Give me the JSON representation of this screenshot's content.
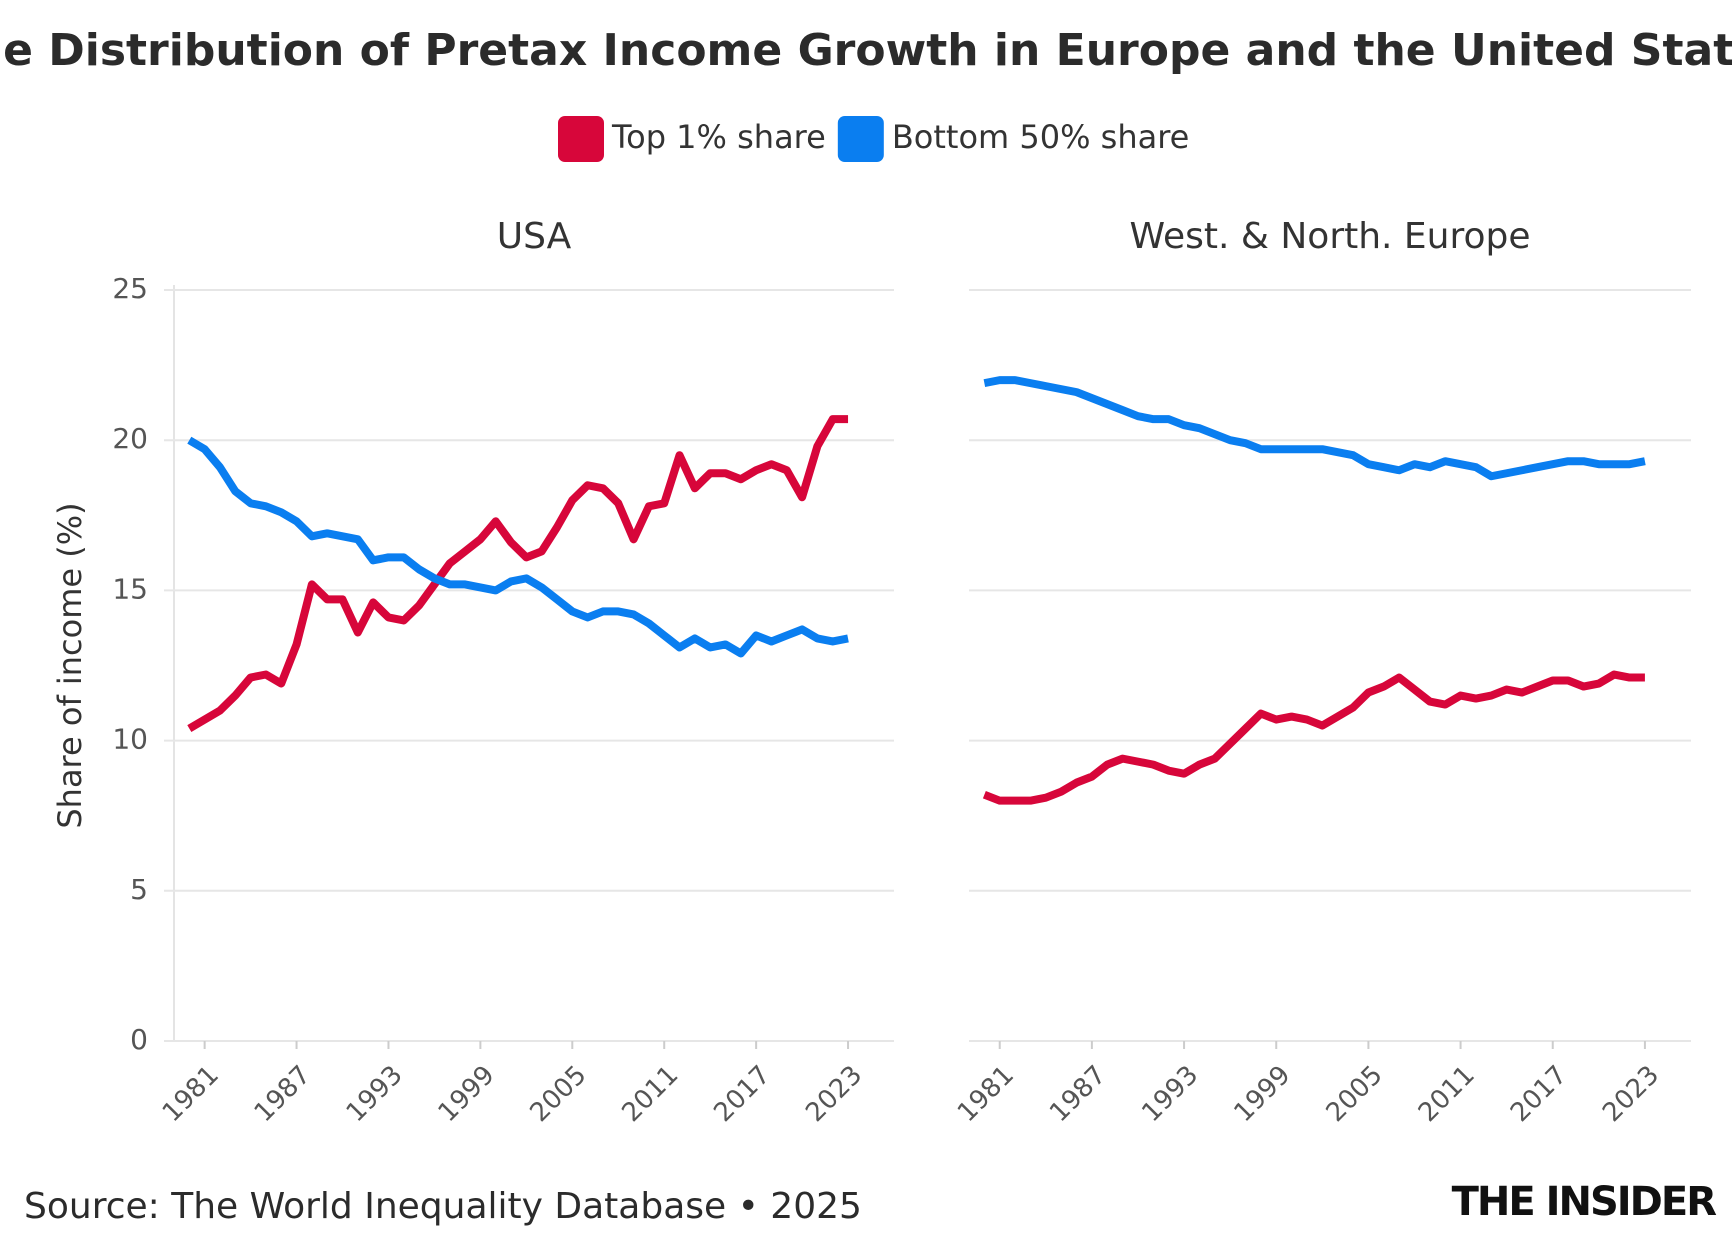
{
  "title": "The Distribution of Pretax Income Growth in Europe and the United States",
  "source": "Source: The World Inequality Database • 2025",
  "brand": "THE INSIDER",
  "chart_data": [
    {
      "type": "line",
      "title": "USA",
      "y_label": "Share of income (%)",
      "show_ytick_labels": true,
      "grid": true,
      "x": [
        1980,
        1981,
        1982,
        1983,
        1984,
        1985,
        1986,
        1987,
        1988,
        1989,
        1990,
        1991,
        1992,
        1993,
        1994,
        1995,
        1996,
        1997,
        1998,
        1999,
        2000,
        2001,
        2002,
        2003,
        2004,
        2005,
        2006,
        2007,
        2008,
        2009,
        2010,
        2011,
        2012,
        2013,
        2014,
        2015,
        2016,
        2017,
        2018,
        2019,
        2020,
        2021,
        2022,
        2023
      ],
      "xlim": [
        1979,
        2026
      ],
      "xticks": [
        1981,
        1987,
        1993,
        1999,
        2005,
        2011,
        2017,
        2023
      ],
      "ylim": [
        0,
        25
      ],
      "yticks": [
        0,
        5,
        10,
        15,
        20,
        25
      ],
      "series": [
        {
          "name": "Top 1% share",
          "color": "#d7063a",
          "values": [
            10.4,
            10.7,
            11.0,
            11.5,
            12.1,
            12.2,
            11.9,
            13.2,
            15.2,
            14.7,
            14.7,
            13.6,
            14.6,
            14.1,
            14.0,
            14.5,
            15.2,
            15.9,
            16.3,
            16.7,
            17.3,
            16.6,
            16.1,
            16.3,
            17.1,
            18.0,
            18.5,
            18.4,
            17.9,
            16.7,
            17.8,
            17.9,
            19.5,
            18.4,
            18.9,
            18.9,
            18.7,
            19.0,
            19.2,
            19.0,
            18.1,
            19.8,
            20.7,
            20.7
          ]
        },
        {
          "name": "Bottom 50% share",
          "color": "#0a7ef0",
          "values": [
            20.0,
            19.7,
            19.1,
            18.3,
            17.9,
            17.8,
            17.6,
            17.3,
            16.8,
            16.9,
            16.8,
            16.7,
            16.0,
            16.1,
            16.1,
            15.7,
            15.4,
            15.2,
            15.2,
            15.1,
            15.0,
            15.3,
            15.4,
            15.1,
            14.7,
            14.3,
            14.1,
            14.3,
            14.3,
            14.2,
            13.9,
            13.5,
            13.1,
            13.4,
            13.1,
            13.2,
            12.9,
            13.5,
            13.3,
            13.5,
            13.7,
            13.4,
            13.3,
            13.4
          ]
        }
      ]
    },
    {
      "type": "line",
      "title": "West. & North. Europe",
      "show_ytick_labels": false,
      "grid": true,
      "x": [
        1980,
        1981,
        1982,
        1983,
        1984,
        1985,
        1986,
        1987,
        1988,
        1989,
        1990,
        1991,
        1992,
        1993,
        1994,
        1995,
        1996,
        1997,
        1998,
        1999,
        2000,
        2001,
        2002,
        2003,
        2004,
        2005,
        2006,
        2007,
        2008,
        2009,
        2010,
        2011,
        2012,
        2013,
        2014,
        2015,
        2016,
        2017,
        2018,
        2019,
        2020,
        2021,
        2022,
        2023
      ],
      "xlim": [
        1979,
        2026
      ],
      "xticks": [
        1981,
        1987,
        1993,
        1999,
        2005,
        2011,
        2017,
        2023
      ],
      "ylim": [
        0,
        25
      ],
      "yticks": [
        0,
        5,
        10,
        15,
        20,
        25
      ],
      "series": [
        {
          "name": "Top 1% share",
          "color": "#d7063a",
          "values": [
            8.2,
            8.0,
            8.0,
            8.0,
            8.1,
            8.3,
            8.6,
            8.8,
            9.2,
            9.4,
            9.3,
            9.2,
            9.0,
            8.9,
            9.2,
            9.4,
            9.9,
            10.4,
            10.9,
            10.7,
            10.8,
            10.7,
            10.5,
            10.8,
            11.1,
            11.6,
            11.8,
            12.1,
            11.7,
            11.3,
            11.2,
            11.5,
            11.4,
            11.5,
            11.7,
            11.6,
            11.8,
            12.0,
            12.0,
            11.8,
            11.9,
            12.2,
            12.1,
            12.1
          ]
        },
        {
          "name": "Bottom 50% share",
          "color": "#0a7ef0",
          "values": [
            21.9,
            22.0,
            22.0,
            21.9,
            21.8,
            21.7,
            21.6,
            21.4,
            21.2,
            21.0,
            20.8,
            20.7,
            20.7,
            20.5,
            20.4,
            20.2,
            20.0,
            19.9,
            19.7,
            19.7,
            19.7,
            19.7,
            19.7,
            19.6,
            19.5,
            19.2,
            19.1,
            19.0,
            19.2,
            19.1,
            19.3,
            19.2,
            19.1,
            18.8,
            18.9,
            19.0,
            19.1,
            19.2,
            19.3,
            19.3,
            19.2,
            19.2,
            19.2,
            19.3
          ]
        }
      ]
    }
  ]
}
